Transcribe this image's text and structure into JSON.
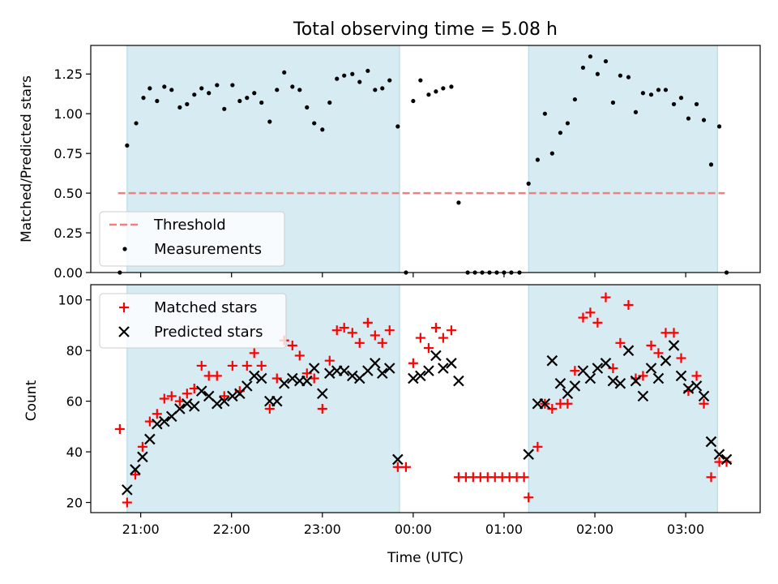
{
  "figure": {
    "title": "Total observing time = 5.08 h"
  },
  "chart_data": [
    {
      "type": "scatter",
      "title": "Total observing time = 5.08 h",
      "xlabel": "",
      "ylabel": "Matched/Predicted stars",
      "x_unit": "hours after 00:00 UTC",
      "xlim": [
        -3.55,
        3.82
      ],
      "ylim": [
        0.0,
        1.43
      ],
      "xticks": [
        -3,
        -2,
        -1,
        0,
        1,
        2,
        3
      ],
      "yticks": [
        0.0,
        0.25,
        0.5,
        0.75,
        1.0,
        1.25
      ],
      "ytick_labels": [
        "0.00",
        "0.25",
        "0.50",
        "0.75",
        "1.00",
        "1.25"
      ],
      "shaded_intervals": [
        [
          -3.15,
          -0.15
        ],
        [
          1.27,
          3.35
        ]
      ],
      "legend_position": "lower-left",
      "legend": [
        "Threshold",
        "Measurements"
      ],
      "threshold": {
        "name": "Threshold",
        "y": 0.5,
        "x_start": -3.25,
        "x_end": 3.43,
        "color": "#f08080"
      },
      "series": [
        {
          "name": "Measurements",
          "color": "#000000",
          "points": [
            [
              -3.23,
              0.0
            ],
            [
              -3.15,
              0.8
            ],
            [
              -3.05,
              0.94
            ],
            [
              -2.97,
              1.1
            ],
            [
              -2.9,
              1.16
            ],
            [
              -2.82,
              1.08
            ],
            [
              -2.74,
              1.17
            ],
            [
              -2.66,
              1.15
            ],
            [
              -2.57,
              1.04
            ],
            [
              -2.49,
              1.06
            ],
            [
              -2.41,
              1.12
            ],
            [
              -2.33,
              1.16
            ],
            [
              -2.25,
              1.13
            ],
            [
              -2.16,
              1.18
            ],
            [
              -2.08,
              1.03
            ],
            [
              -1.99,
              1.18
            ],
            [
              -1.91,
              1.08
            ],
            [
              -1.83,
              1.1
            ],
            [
              -1.75,
              1.13
            ],
            [
              -1.67,
              1.07
            ],
            [
              -1.58,
              0.95
            ],
            [
              -1.5,
              1.15
            ],
            [
              -1.42,
              1.26
            ],
            [
              -1.33,
              1.17
            ],
            [
              -1.25,
              1.15
            ],
            [
              -1.17,
              1.04
            ],
            [
              -1.09,
              0.94
            ],
            [
              -1.0,
              0.9
            ],
            [
              -0.92,
              1.07
            ],
            [
              -0.84,
              1.22
            ],
            [
              -0.76,
              1.24
            ],
            [
              -0.67,
              1.25
            ],
            [
              -0.59,
              1.2
            ],
            [
              -0.5,
              1.27
            ],
            [
              -0.42,
              1.15
            ],
            [
              -0.34,
              1.16
            ],
            [
              -0.26,
              1.21
            ],
            [
              -0.17,
              0.92
            ],
            [
              -0.08,
              0.0
            ],
            [
              0.0,
              1.08
            ],
            [
              0.08,
              1.21
            ],
            [
              0.17,
              1.12
            ],
            [
              0.25,
              1.14
            ],
            [
              0.33,
              1.16
            ],
            [
              0.42,
              1.17
            ],
            [
              0.5,
              0.44
            ],
            [
              0.6,
              0.0
            ],
            [
              0.68,
              0.0
            ],
            [
              0.76,
              0.0
            ],
            [
              0.84,
              0.0
            ],
            [
              0.92,
              0.0
            ],
            [
              1.0,
              0.0
            ],
            [
              1.08,
              0.0
            ],
            [
              1.17,
              0.0
            ],
            [
              1.27,
              0.56
            ],
            [
              1.37,
              0.71
            ],
            [
              1.45,
              1.0
            ],
            [
              1.53,
              0.75
            ],
            [
              1.62,
              0.88
            ],
            [
              1.7,
              0.94
            ],
            [
              1.78,
              1.09
            ],
            [
              1.87,
              1.29
            ],
            [
              1.95,
              1.36
            ],
            [
              2.03,
              1.25
            ],
            [
              2.12,
              1.33
            ],
            [
              2.2,
              1.07
            ],
            [
              2.28,
              1.24
            ],
            [
              2.37,
              1.23
            ],
            [
              2.45,
              1.01
            ],
            [
              2.53,
              1.13
            ],
            [
              2.62,
              1.12
            ],
            [
              2.7,
              1.15
            ],
            [
              2.78,
              1.15
            ],
            [
              2.87,
              1.06
            ],
            [
              2.95,
              1.1
            ],
            [
              3.03,
              0.97
            ],
            [
              3.12,
              1.06
            ],
            [
              3.2,
              0.96
            ],
            [
              3.28,
              0.68
            ],
            [
              3.37,
              0.92
            ],
            [
              3.45,
              0.0
            ]
          ]
        }
      ]
    },
    {
      "type": "scatter",
      "title": "",
      "xlabel": "Time (UTC)",
      "ylabel": "Count",
      "x_unit": "hours after 00:00 UTC",
      "xlim": [
        -3.55,
        3.82
      ],
      "ylim": [
        16,
        106
      ],
      "xticks": [
        -3,
        -2,
        -1,
        0,
        1,
        2,
        3
      ],
      "xtick_labels": [
        "21:00",
        "22:00",
        "23:00",
        "00:00",
        "01:00",
        "02:00",
        "03:00"
      ],
      "yticks": [
        20,
        40,
        60,
        80,
        100
      ],
      "ytick_labels": [
        "20",
        "40",
        "60",
        "80",
        "100"
      ],
      "shaded_intervals": [
        [
          -3.15,
          -0.15
        ],
        [
          1.27,
          3.35
        ]
      ],
      "legend_position": "upper-left",
      "legend": [
        "Matched stars",
        "Predicted stars"
      ],
      "series": [
        {
          "name": "Matched stars",
          "marker": "+",
          "color": "#ff0000",
          "points": [
            [
              -3.23,
              49
            ],
            [
              -3.15,
              20
            ],
            [
              -3.06,
              31
            ],
            [
              -2.98,
              42
            ],
            [
              -2.9,
              52
            ],
            [
              -2.82,
              55
            ],
            [
              -2.74,
              61
            ],
            [
              -2.66,
              62
            ],
            [
              -2.57,
              60
            ],
            [
              -2.49,
              63
            ],
            [
              -2.41,
              65
            ],
            [
              -2.33,
              74
            ],
            [
              -2.25,
              70
            ],
            [
              -2.16,
              70
            ],
            [
              -2.08,
              62
            ],
            [
              -1.99,
              74
            ],
            [
              -1.91,
              64
            ],
            [
              -1.83,
              74
            ],
            [
              -1.75,
              79
            ],
            [
              -1.67,
              74
            ],
            [
              -1.58,
              57
            ],
            [
              -1.5,
              69
            ],
            [
              -1.42,
              84
            ],
            [
              -1.33,
              82
            ],
            [
              -1.25,
              78
            ],
            [
              -1.17,
              71
            ],
            [
              -1.09,
              69
            ],
            [
              -1.0,
              57
            ],
            [
              -0.92,
              76
            ],
            [
              -0.84,
              88
            ],
            [
              -0.76,
              89
            ],
            [
              -0.67,
              87
            ],
            [
              -0.59,
              83
            ],
            [
              -0.5,
              91
            ],
            [
              -0.42,
              86
            ],
            [
              -0.34,
              83
            ],
            [
              -0.26,
              88
            ],
            [
              -0.17,
              34
            ],
            [
              -0.08,
              34
            ],
            [
              0.0,
              75
            ],
            [
              0.08,
              85
            ],
            [
              0.17,
              81
            ],
            [
              0.25,
              89
            ],
            [
              0.33,
              85
            ],
            [
              0.42,
              88
            ],
            [
              0.5,
              30
            ],
            [
              0.58,
              30
            ],
            [
              0.66,
              30
            ],
            [
              0.74,
              30
            ],
            [
              0.82,
              30
            ],
            [
              0.9,
              30
            ],
            [
              0.98,
              30
            ],
            [
              1.06,
              30
            ],
            [
              1.14,
              30
            ],
            [
              1.22,
              30
            ],
            [
              1.27,
              22
            ],
            [
              1.37,
              42
            ],
            [
              1.45,
              59
            ],
            [
              1.53,
              57
            ],
            [
              1.62,
              59
            ],
            [
              1.7,
              59
            ],
            [
              1.78,
              72
            ],
            [
              1.87,
              93
            ],
            [
              1.95,
              95
            ],
            [
              2.03,
              91
            ],
            [
              2.12,
              101
            ],
            [
              2.2,
              73
            ],
            [
              2.28,
              83
            ],
            [
              2.37,
              98
            ],
            [
              2.45,
              69
            ],
            [
              2.53,
              70
            ],
            [
              2.62,
              82
            ],
            [
              2.7,
              79
            ],
            [
              2.78,
              87
            ],
            [
              2.87,
              87
            ],
            [
              2.95,
              77
            ],
            [
              3.03,
              64
            ],
            [
              3.12,
              70
            ],
            [
              3.2,
              59
            ],
            [
              3.28,
              30
            ],
            [
              3.37,
              36
            ],
            [
              3.45,
              36
            ]
          ]
        },
        {
          "name": "Predicted stars",
          "marker": "x",
          "color": "#000000",
          "points": [
            [
              -3.15,
              25
            ],
            [
              -3.06,
              33
            ],
            [
              -2.98,
              38
            ],
            [
              -2.9,
              45
            ],
            [
              -2.82,
              51
            ],
            [
              -2.74,
              52
            ],
            [
              -2.66,
              54
            ],
            [
              -2.57,
              57
            ],
            [
              -2.49,
              59
            ],
            [
              -2.41,
              58
            ],
            [
              -2.33,
              64
            ],
            [
              -2.25,
              62
            ],
            [
              -2.16,
              59
            ],
            [
              -2.08,
              60
            ],
            [
              -1.99,
              62
            ],
            [
              -1.91,
              63
            ],
            [
              -1.83,
              66
            ],
            [
              -1.75,
              70
            ],
            [
              -1.67,
              69
            ],
            [
              -1.58,
              60
            ],
            [
              -1.5,
              60
            ],
            [
              -1.42,
              67
            ],
            [
              -1.33,
              69
            ],
            [
              -1.25,
              68
            ],
            [
              -1.17,
              68
            ],
            [
              -1.09,
              73
            ],
            [
              -1.0,
              63
            ],
            [
              -0.92,
              71
            ],
            [
              -0.84,
              72
            ],
            [
              -0.76,
              72
            ],
            [
              -0.67,
              70
            ],
            [
              -0.59,
              69
            ],
            [
              -0.5,
              72
            ],
            [
              -0.42,
              75
            ],
            [
              -0.34,
              71
            ],
            [
              -0.26,
              73
            ],
            [
              -0.17,
              37
            ],
            [
              0.0,
              69
            ],
            [
              0.08,
              70
            ],
            [
              0.17,
              72
            ],
            [
              0.25,
              78
            ],
            [
              0.33,
              73
            ],
            [
              0.42,
              75
            ],
            [
              0.5,
              68
            ],
            [
              1.27,
              39
            ],
            [
              1.37,
              59
            ],
            [
              1.45,
              59
            ],
            [
              1.53,
              76
            ],
            [
              1.62,
              67
            ],
            [
              1.7,
              63
            ],
            [
              1.78,
              66
            ],
            [
              1.87,
              72
            ],
            [
              1.95,
              69
            ],
            [
              2.03,
              73
            ],
            [
              2.12,
              75
            ],
            [
              2.2,
              68
            ],
            [
              2.28,
              67
            ],
            [
              2.37,
              80
            ],
            [
              2.45,
              68
            ],
            [
              2.53,
              62
            ],
            [
              2.62,
              73
            ],
            [
              2.7,
              69
            ],
            [
              2.78,
              76
            ],
            [
              2.87,
              82
            ],
            [
              2.95,
              70
            ],
            [
              3.03,
              65
            ],
            [
              3.12,
              66
            ],
            [
              3.2,
              62
            ],
            [
              3.28,
              44
            ],
            [
              3.37,
              39
            ],
            [
              3.45,
              37
            ]
          ]
        }
      ]
    }
  ]
}
